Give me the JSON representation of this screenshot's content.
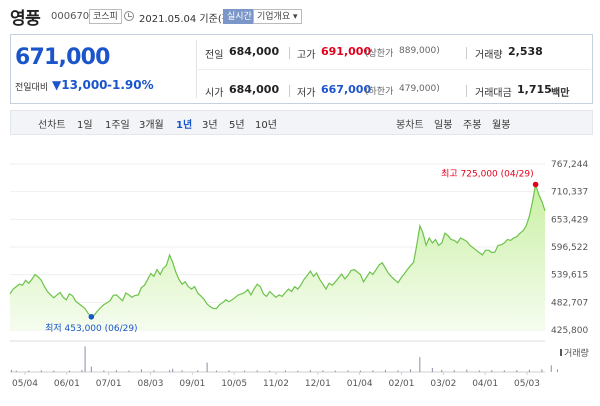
{
  "header": {
    "name": "영풍",
    "code": "000670",
    "market_badge": "코스피",
    "date_text": "2021.05.04 기준(장마감)",
    "live_badge": "실시간",
    "info_badge": "기업개요 ▾"
  },
  "quote": {
    "price": "671,000",
    "change_label": "전일대비",
    "change_value": "▼13,000",
    "change_pct": "-1.90%",
    "prev_close_label": "전일",
    "prev_close": "684,000",
    "high_label": "고가",
    "high": "691,000",
    "upper_limit_label": "(상한가",
    "upper_limit": "889,000)",
    "volume_label": "거래량",
    "volume": "2,538",
    "open_label": "시가",
    "open": "684,000",
    "low_label": "저가",
    "low": "667,000",
    "lower_limit_label": "(하한가",
    "lower_limit": "479,000)",
    "amount_label": "거래대금",
    "amount": "1,715",
    "amount_unit": "백만"
  },
  "periods": {
    "label": "선차트",
    "items": [
      "1일",
      "1주일",
      "3개월",
      "1년",
      "3년",
      "5년",
      "10년"
    ],
    "active": "1년",
    "candle_label": "봉차트",
    "candle_items": [
      "일봉",
      "주봉",
      "월봉"
    ]
  },
  "colors": {
    "accent": "#1b55cc",
    "up": "#e0001b",
    "area_fill": "#c6ef9e",
    "area_line": "#6cc34a"
  },
  "chart_data": {
    "type": "area",
    "y_ticks": [
      "767,244",
      "710,337",
      "653,429",
      "596,522",
      "539,615",
      "482,707",
      "425,800"
    ],
    "ylim": [
      425800,
      767244
    ],
    "x_ticks": [
      "05/04",
      "06/01",
      "07/01",
      "08/03",
      "09/01",
      "10/05",
      "11/02",
      "12/01",
      "01/04",
      "02/01",
      "03/02",
      "04/01",
      "05/03"
    ],
    "values": [
      500000,
      510000,
      515000,
      520000,
      518000,
      528000,
      522000,
      530000,
      540000,
      535000,
      528000,
      515000,
      505000,
      498000,
      492000,
      498000,
      503000,
      493000,
      488000,
      500000,
      496000,
      485000,
      480000,
      475000,
      470000,
      460000,
      453000,
      457000,
      465000,
      472000,
      478000,
      482000,
      486000,
      497000,
      498000,
      492000,
      486000,
      502000,
      498000,
      493000,
      497000,
      498000,
      513000,
      518000,
      530000,
      542000,
      536000,
      550000,
      540000,
      553000,
      558000,
      580000,
      565000,
      545000,
      530000,
      520000,
      525000,
      515000,
      510000,
      515000,
      502000,
      496000,
      489000,
      479000,
      474000,
      470000,
      470000,
      478000,
      482000,
      488000,
      484000,
      488000,
      493000,
      498000,
      500000,
      503000,
      509000,
      498000,
      510000,
      520000,
      515000,
      500000,
      495000,
      505000,
      499000,
      493000,
      498000,
      495000,
      503000,
      510000,
      505000,
      515000,
      510000,
      519000,
      530000,
      538000,
      547000,
      536000,
      543000,
      530000,
      520000,
      510000,
      522000,
      518000,
      525000,
      533000,
      541000,
      531000,
      538000,
      548000,
      550000,
      545000,
      540000,
      525000,
      535000,
      545000,
      540000,
      550000,
      560000,
      564000,
      553000,
      542000,
      535000,
      529000,
      523000,
      533000,
      541000,
      550000,
      558000,
      565000,
      600000,
      640000,
      625000,
      600000,
      615000,
      605000,
      612000,
      600000,
      605000,
      625000,
      620000,
      612000,
      610000,
      605000,
      615000,
      612000,
      608000,
      600000,
      595000,
      590000,
      585000,
      580000,
      590000,
      590000,
      585000,
      586000,
      600000,
      601000,
      605000,
      612000,
      610000,
      615000,
      618000,
      625000,
      630000,
      640000,
      660000,
      690000,
      725000,
      705000,
      690000,
      671000
    ],
    "max_label": "최고 725,000 (04/29)",
    "min_label": "최저 453,000 (06/29)",
    "volume_label": "거래량",
    "volume_bars": [
      [
        0.5,
        0.08
      ],
      [
        2,
        0.05
      ],
      [
        6,
        0.05
      ],
      [
        10,
        0.06
      ],
      [
        14,
        0.05
      ],
      [
        19,
        0.05
      ],
      [
        23,
        0.08
      ],
      [
        24,
        0.95
      ],
      [
        26,
        0.2
      ],
      [
        30,
        0.06
      ],
      [
        34,
        0.07
      ],
      [
        38,
        0.05
      ],
      [
        42,
        0.1
      ],
      [
        46,
        0.06
      ],
      [
        51,
        0.07
      ],
      [
        52,
        0.12
      ],
      [
        55,
        0.06
      ],
      [
        60,
        0.06
      ],
      [
        63,
        0.35
      ],
      [
        66,
        0.05
      ],
      [
        70,
        0.06
      ],
      [
        75,
        0.05
      ],
      [
        79,
        0.06
      ],
      [
        83,
        0.05
      ],
      [
        88,
        0.06
      ],
      [
        92,
        0.05
      ],
      [
        96,
        0.07
      ],
      [
        100,
        0.06
      ],
      [
        104,
        0.05
      ],
      [
        108,
        0.06
      ],
      [
        112,
        0.05
      ],
      [
        116,
        0.06
      ],
      [
        120,
        0.07
      ],
      [
        124,
        0.06
      ],
      [
        128,
        0.1
      ],
      [
        131,
        0.55
      ],
      [
        135,
        0.15
      ],
      [
        138,
        0.08
      ],
      [
        142,
        0.07
      ],
      [
        146,
        0.09
      ],
      [
        150,
        0.06
      ],
      [
        154,
        0.07
      ],
      [
        158,
        0.06
      ],
      [
        162,
        0.07
      ],
      [
        166,
        0.08
      ],
      [
        170,
        0.1
      ],
      [
        173,
        0.25
      ],
      [
        175,
        0.1
      ]
    ]
  }
}
